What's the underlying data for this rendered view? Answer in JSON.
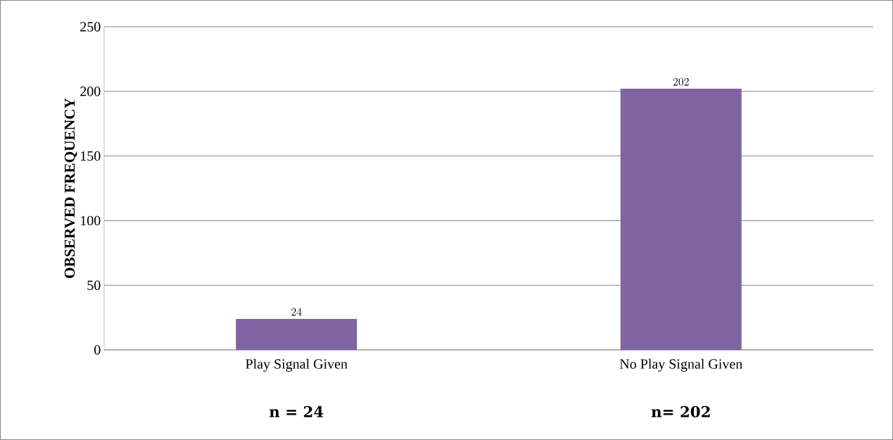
{
  "chart_data": {
    "type": "bar",
    "ylabel": "OBSERVED FREQUENCY",
    "categories": [
      "Play Signal Given",
      "No Play Signal Given"
    ],
    "values": [
      24,
      202
    ],
    "color": "#8064a2",
    "ylim": [
      0,
      250
    ],
    "yticks": [
      0,
      50,
      100,
      150,
      200,
      250
    ],
    "grid": "y",
    "data_labels": true,
    "annotations": [
      "n = 24",
      "n= 202"
    ]
  }
}
